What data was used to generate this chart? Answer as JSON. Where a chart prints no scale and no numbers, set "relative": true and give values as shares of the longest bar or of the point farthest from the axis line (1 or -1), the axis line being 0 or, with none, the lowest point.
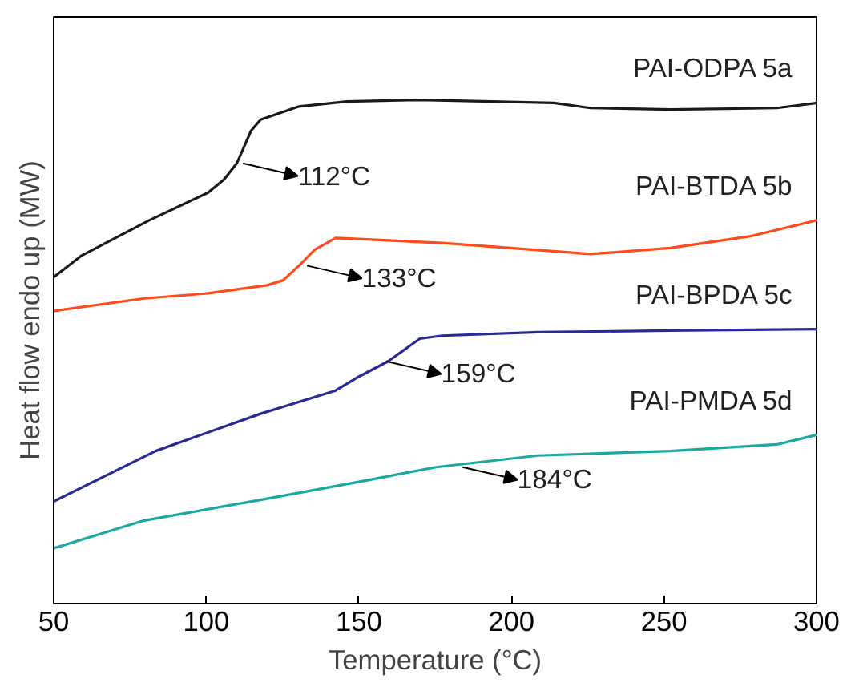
{
  "chart_data": {
    "type": "line",
    "relative": true,
    "xlabel": "Temperature (°C)",
    "ylabel": "Heat flow endo up (MW)",
    "xlim": [
      50,
      300
    ],
    "xticks": [
      50,
      100,
      150,
      200,
      250,
      300
    ],
    "tick_labels": "x",
    "grid": false,
    "series": [
      {
        "name": "PAI-ODPA 5a",
        "color": "#1a1a1a",
        "x": [
          50,
          58.9,
          81.3,
          100.6,
          105.8,
          110,
          114.7,
          117.8,
          130.4,
          146,
          170,
          213.9,
          225.9,
          252,
          287,
          300
        ],
        "values": [
          0.648,
          0.69,
          0.761,
          0.816,
          0.842,
          0.874,
          0.939,
          0.961,
          0.987,
          0.997,
          1.0,
          0.994,
          0.984,
          0.981,
          0.984,
          0.994
        ]
      },
      {
        "name": "PAI-BTDA 5b",
        "color": "#ff4a1c",
        "x": [
          50,
          79.7,
          100.6,
          119.9,
          125.2,
          130.4,
          135.6,
          142.4,
          152.8,
          177.3,
          199.8,
          225.9,
          252,
          278,
          300
        ],
        "values": [
          0.581,
          0.606,
          0.616,
          0.632,
          0.642,
          0.671,
          0.703,
          0.726,
          0.723,
          0.716,
          0.706,
          0.694,
          0.706,
          0.729,
          0.761
        ]
      },
      {
        "name": "PAI-BPDA 5c",
        "color": "#2a2a96",
        "x": [
          50,
          83.4,
          117.8,
          142.4,
          149.2,
          159.6,
          170,
          177.3,
          208.7,
          252,
          300
        ],
        "values": [
          0.203,
          0.303,
          0.377,
          0.423,
          0.448,
          0.481,
          0.526,
          0.532,
          0.539,
          0.542,
          0.545
        ]
      },
      {
        "name": "PAI-PMDA 5d",
        "color": "#1aa8a0",
        "x": [
          50,
          79.7,
          117.8,
          152.8,
          175.3,
          208.7,
          252,
          287,
          300
        ],
        "values": [
          0.11,
          0.165,
          0.206,
          0.245,
          0.271,
          0.294,
          0.303,
          0.316,
          0.335
        ]
      }
    ],
    "annotations": [
      {
        "text": "112°C",
        "x": 112,
        "y": 0.874
      },
      {
        "text": "133°C",
        "x": 133,
        "y": 0.671
      },
      {
        "text": "159°C",
        "x": 159,
        "y": 0.481
      },
      {
        "text": "184°C",
        "x": 184,
        "y": 0.271
      }
    ]
  }
}
